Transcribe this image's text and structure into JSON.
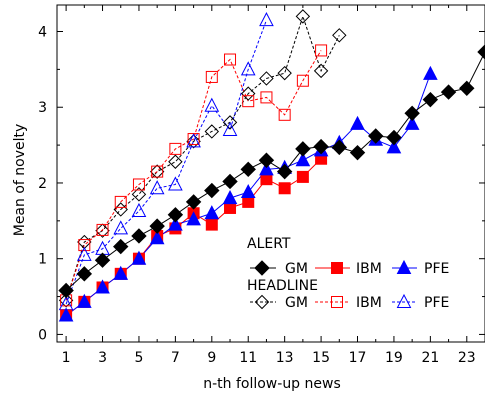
{
  "chart_data": {
    "type": "line",
    "xlabel": "n-th follow-up news",
    "ylabel": "Mean of novelty",
    "xlim": [
      0.5,
      24
    ],
    "ylim": [
      -0.1,
      4.35
    ],
    "xticks": [
      1,
      3,
      5,
      7,
      9,
      11,
      13,
      15,
      17,
      19,
      21,
      23
    ],
    "xticks_minor": [
      2,
      4,
      6,
      8,
      10,
      12,
      14,
      16,
      18,
      20,
      22
    ],
    "yticks": [
      0,
      1,
      2,
      3,
      4
    ],
    "grid": false,
    "legend_position": "bottom-right",
    "legend_groups": [
      {
        "title": "ALERT",
        "series": [
          "alert_gm",
          "alert_ibm",
          "alert_pfe"
        ]
      },
      {
        "title": "HEADLINE",
        "series": [
          "headline_gm",
          "headline_ibm",
          "headline_pfe"
        ]
      }
    ],
    "series": [
      {
        "id": "alert_gm",
        "name": "GM",
        "color": "#000000",
        "marker": "diamond",
        "filled": true,
        "dashed": false,
        "x": [
          1,
          2,
          3,
          4,
          5,
          6,
          7,
          8,
          9,
          10,
          11,
          12,
          13,
          14,
          15,
          16,
          17,
          18,
          19,
          20,
          21,
          22,
          23,
          24
        ],
        "y": [
          0.58,
          0.8,
          0.98,
          1.16,
          1.3,
          1.43,
          1.58,
          1.75,
          1.9,
          2.02,
          2.18,
          2.3,
          2.15,
          2.45,
          2.48,
          2.47,
          2.4,
          2.62,
          2.6,
          2.92,
          3.1,
          3.2,
          3.25,
          3.73
        ]
      },
      {
        "id": "alert_ibm",
        "name": "IBM",
        "color": "#ff0000",
        "marker": "square",
        "filled": true,
        "dashed": false,
        "x": [
          1,
          2,
          3,
          4,
          5,
          6,
          7,
          8,
          9,
          10,
          11,
          12,
          13,
          14,
          15
        ],
        "y": [
          0.25,
          0.43,
          0.62,
          0.8,
          1.0,
          1.3,
          1.4,
          1.6,
          1.45,
          1.67,
          1.75,
          2.05,
          1.93,
          2.08,
          2.32
        ]
      },
      {
        "id": "alert_pfe",
        "name": "PFE",
        "color": "#0000ff",
        "marker": "triangle",
        "filled": true,
        "dashed": false,
        "x": [
          1,
          2,
          3,
          4,
          5,
          6,
          7,
          8,
          9,
          10,
          11,
          12,
          13,
          14,
          15,
          16,
          17,
          18,
          19,
          20,
          21
        ],
        "y": [
          0.25,
          0.43,
          0.62,
          0.8,
          1.0,
          1.27,
          1.45,
          1.52,
          1.6,
          1.8,
          1.88,
          2.18,
          2.2,
          2.3,
          2.43,
          2.53,
          2.78,
          2.57,
          2.47,
          2.78,
          3.44
        ]
      },
      {
        "id": "headline_gm",
        "name": "GM",
        "color": "#000000",
        "marker": "diamond",
        "filled": false,
        "dashed": true,
        "x": [
          1,
          2,
          3,
          4,
          5,
          6,
          7,
          8,
          9,
          10,
          11,
          12,
          13,
          14,
          15,
          16
        ],
        "y": [
          0.45,
          1.22,
          1.37,
          1.65,
          1.85,
          2.15,
          2.28,
          2.55,
          2.68,
          2.8,
          3.18,
          3.38,
          3.45,
          4.2,
          3.48,
          3.95
        ]
      },
      {
        "id": "headline_ibm",
        "name": "IBM",
        "color": "#ff0000",
        "marker": "square",
        "filled": false,
        "dashed": true,
        "x": [
          1,
          2,
          3,
          4,
          5,
          6,
          7,
          8,
          9,
          10,
          11,
          12,
          13,
          14,
          15
        ],
        "y": [
          0.45,
          1.18,
          1.38,
          1.75,
          1.98,
          2.15,
          2.45,
          2.58,
          3.4,
          3.63,
          3.08,
          3.13,
          2.9,
          3.35,
          3.75
        ]
      },
      {
        "id": "headline_pfe",
        "name": "PFE",
        "color": "#0000ff",
        "marker": "triangle",
        "filled": false,
        "dashed": true,
        "x": [
          1,
          2,
          3,
          4,
          5,
          6,
          7,
          8,
          9,
          10,
          11,
          12
        ],
        "y": [
          0.4,
          1.05,
          1.13,
          1.4,
          1.63,
          1.93,
          1.98,
          2.55,
          3.02,
          2.7,
          3.5,
          4.15
        ]
      }
    ]
  }
}
